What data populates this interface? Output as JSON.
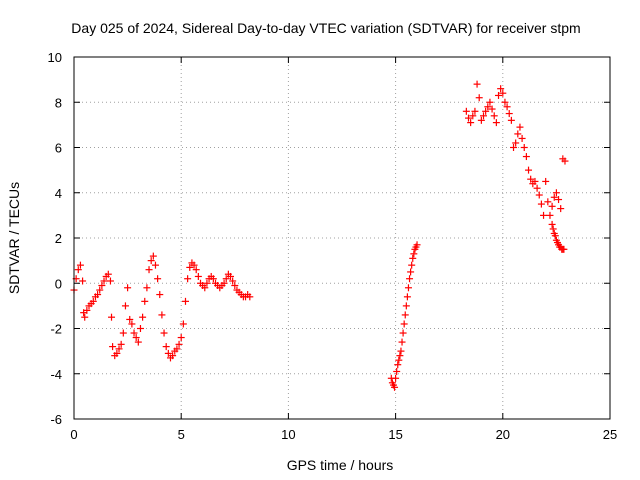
{
  "chart_data": {
    "type": "scatter",
    "title": "Day 025 of 2024, Sidereal Day-to-day VTEC variation (SDTVAR) for receiver stpm",
    "xlabel": "GPS time / hours",
    "ylabel": "SDTVAR / TECUs",
    "xlim": [
      0,
      25
    ],
    "ylim": [
      -6,
      10
    ],
    "xticks": [
      0,
      5,
      10,
      15,
      20,
      25
    ],
    "yticks": [
      -6,
      -4,
      -2,
      0,
      2,
      4,
      6,
      8,
      10
    ],
    "xtick_labels": [
      "0",
      "5",
      "10",
      "15",
      "20",
      "25"
    ],
    "ytick_labels": [
      "-6",
      "-4",
      "-2",
      "0",
      "2",
      "4",
      "6",
      "8",
      "10"
    ],
    "grid": true,
    "marker": "+",
    "series_color": "#ff0000",
    "series": [
      {
        "name": "SDTVAR",
        "segments": [
          {
            "x": [
              0.0,
              0.1,
              0.2,
              0.3,
              0.4,
              0.45,
              0.5,
              0.6,
              0.7,
              0.8,
              0.9,
              1.0,
              1.1,
              1.2,
              1.3,
              1.4,
              1.5,
              1.6,
              1.7,
              1.75,
              1.8,
              1.9,
              2.0,
              2.1,
              2.2,
              2.3,
              2.4,
              2.5,
              2.6,
              2.7,
              2.8,
              2.9,
              3.0,
              3.1,
              3.2,
              3.3,
              3.4,
              3.5,
              3.6,
              3.7,
              3.8,
              3.9,
              4.0,
              4.1,
              4.2,
              4.3,
              4.4,
              4.5,
              4.6,
              4.7,
              4.8,
              4.9,
              5.0,
              5.1,
              5.2,
              5.3,
              5.4,
              5.5,
              5.6,
              5.7,
              5.8,
              5.9,
              6.0,
              6.1,
              6.2,
              6.3,
              6.4,
              6.5,
              6.6,
              6.7,
              6.8,
              6.9,
              7.0,
              7.1,
              7.2,
              7.3,
              7.4,
              7.5,
              7.6,
              7.7,
              7.8,
              7.9,
              8.0,
              8.1,
              8.2
            ],
            "y": [
              -0.3,
              0.2,
              0.6,
              0.8,
              0.1,
              -1.3,
              -1.5,
              -1.2,
              -1.0,
              -0.9,
              -0.8,
              -0.6,
              -0.5,
              -0.3,
              -0.1,
              0.1,
              0.3,
              0.4,
              0.1,
              -1.5,
              -2.8,
              -3.2,
              -3.1,
              -2.9,
              -2.7,
              -2.2,
              -1.0,
              -0.2,
              -1.6,
              -1.8,
              -2.2,
              -2.4,
              -2.6,
              -2.0,
              -1.5,
              -0.8,
              -0.2,
              0.6,
              1.0,
              1.2,
              0.8,
              0.2,
              -0.5,
              -1.4,
              -2.2,
              -2.8,
              -3.1,
              -3.3,
              -3.2,
              -3.0,
              -2.9,
              -2.7,
              -2.4,
              -1.8,
              -0.8,
              0.2,
              0.7,
              0.9,
              0.8,
              0.6,
              0.3,
              0.0,
              -0.1,
              -0.2,
              0.0,
              0.2,
              0.3,
              0.2,
              0.0,
              -0.1,
              -0.2,
              -0.1,
              0.0,
              0.2,
              0.4,
              0.3,
              0.1,
              -0.1,
              -0.3,
              -0.4,
              -0.5,
              -0.6,
              -0.6,
              -0.5,
              -0.6
            ]
          },
          {
            "x": [
              14.8,
              14.85,
              14.9,
              14.95,
              15.0,
              15.05,
              15.1,
              15.15,
              15.2,
              15.25,
              15.3,
              15.35,
              15.4,
              15.45,
              15.5,
              15.55,
              15.6,
              15.65,
              15.7,
              15.75,
              15.8,
              15.85,
              15.9,
              15.95,
              16.0
            ],
            "y": [
              -4.2,
              -4.4,
              -4.5,
              -4.6,
              -4.2,
              -3.9,
              -3.6,
              -3.4,
              -3.2,
              -3.0,
              -2.6,
              -2.2,
              -1.8,
              -1.4,
              -1.0,
              -0.6,
              -0.2,
              0.2,
              0.5,
              0.8,
              1.1,
              1.3,
              1.5,
              1.6,
              1.7
            ]
          },
          {
            "x": [
              18.3,
              18.4,
              18.5,
              18.6,
              18.7,
              18.8,
              18.9,
              19.0,
              19.1,
              19.2,
              19.3,
              19.4,
              19.5,
              19.6,
              19.7,
              19.8,
              19.9,
              20.0,
              20.1,
              20.2,
              20.3,
              20.4,
              20.5,
              20.6,
              20.7,
              20.8,
              20.9,
              21.0,
              21.1,
              21.2,
              21.3,
              21.4,
              21.5,
              21.6,
              21.7,
              21.8,
              21.9,
              22.0,
              22.1,
              22.2,
              22.3,
              22.4,
              22.5,
              22.6,
              22.7,
              22.8,
              22.9
            ],
            "y": [
              7.6,
              7.3,
              7.1,
              7.4,
              7.6,
              8.8,
              8.2,
              7.2,
              7.4,
              7.6,
              7.8,
              8.0,
              7.7,
              7.4,
              7.1,
              8.3,
              8.6,
              8.4,
              8.0,
              7.8,
              7.5,
              7.2,
              6.0,
              6.2,
              6.6,
              6.9,
              6.4,
              6.0,
              5.6,
              5.0,
              4.6,
              4.4,
              4.5,
              4.2,
              3.9,
              3.5,
              3.0,
              4.5,
              3.6,
              3.0,
              3.4,
              3.8,
              4.0,
              3.7,
              3.3,
              5.5,
              5.4
            ]
          },
          {
            "x": [
              22.3,
              22.35,
              22.4,
              22.45,
              22.5,
              22.55,
              22.6,
              22.65,
              22.7,
              22.75,
              22.8,
              22.85
            ],
            "y": [
              2.6,
              2.4,
              2.2,
              2.1,
              1.9,
              1.8,
              1.7,
              1.6,
              1.6,
              1.5,
              1.5,
              1.5
            ]
          }
        ]
      }
    ]
  }
}
